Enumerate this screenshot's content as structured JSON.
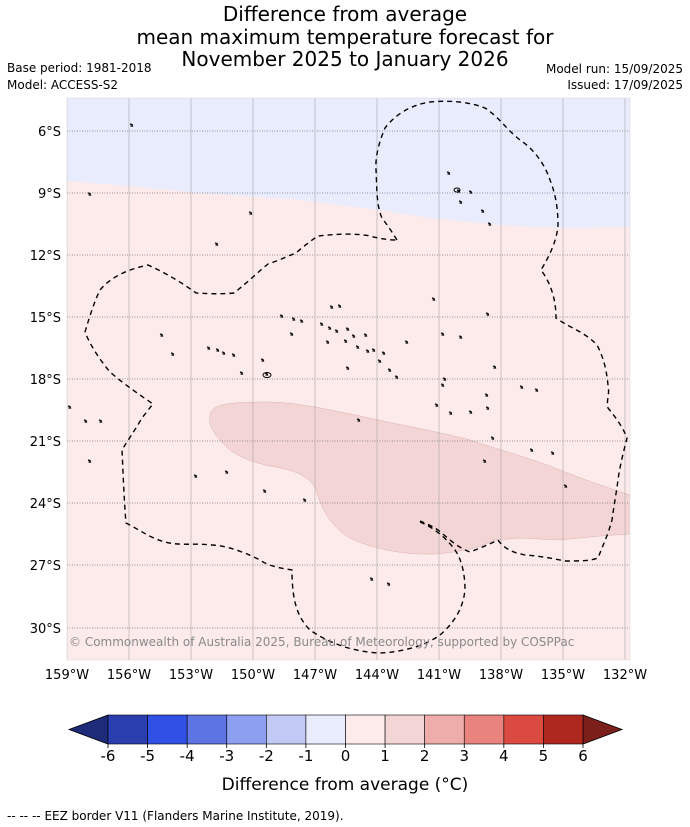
{
  "title": {
    "line1": "Difference from average",
    "line2": "mean maximum temperature forecast for",
    "line3": "November 2025 to January 2026"
  },
  "meta": {
    "base_period": "Base period: 1981-2018",
    "model": "Model: ACCESS-S2",
    "model_run": "Model run: 15/09/2025",
    "issued": "Issued: 17/09/2025"
  },
  "map": {
    "lat_labels": [
      "6°S",
      "9°S",
      "12°S",
      "15°S",
      "18°S",
      "21°S",
      "24°S",
      "27°S",
      "30°S"
    ],
    "lon_labels": [
      "159°W",
      "156°W",
      "153°W",
      "150°W",
      "147°W",
      "144°W",
      "141°W",
      "138°W",
      "135°W",
      "132°W"
    ],
    "copyright": "© Commonwealth of Australia 2025, Bureau of Meteorology, supported by COSPPac",
    "colors": {
      "minus_1_to_0": "#e8ecfd",
      "zero_to_1": "#fcebea",
      "one_to_2": "#f4d5d5"
    }
  },
  "colorbar": {
    "ticks": [
      "-6",
      "-5",
      "-4",
      "-3",
      "-2",
      "-1",
      "0",
      "1",
      "2",
      "3",
      "4",
      "5",
      "6"
    ],
    "colors": [
      "#2a3eaf",
      "#3051e3",
      "#5c74e4",
      "#8c9ff0",
      "#c3c9f5",
      "#e8ecfd",
      "#fcebea",
      "#f4d5d5",
      "#eeacaa",
      "#e8837d",
      "#da4a40",
      "#ae2820"
    ],
    "under_color": "#1e2b78",
    "over_color": "#7b1f1a",
    "label": "Difference from average (°C)"
  },
  "footer": {
    "legend_line": "--  --  --",
    "legend_text": "EEZ border V11 (Flanders Marine Institute, 2019)."
  }
}
